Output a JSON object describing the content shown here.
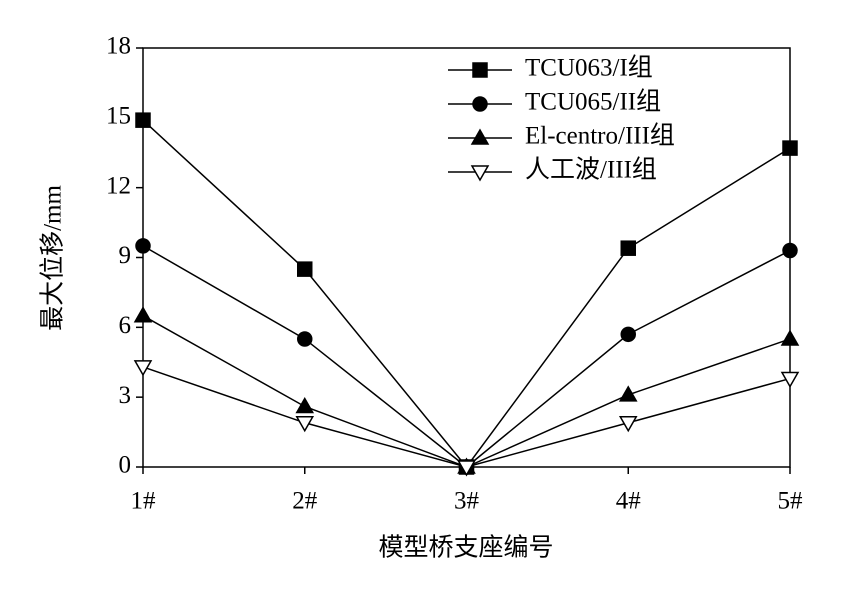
{
  "chart_data": {
    "type": "line",
    "x_label": "模型桥支座编号",
    "y_label": "最大位移/mm",
    "categories": [
      "1#",
      "2#",
      "3#",
      "4#",
      "5#"
    ],
    "series": [
      {
        "name": "TCU063/I组",
        "color": "#000000",
        "marker": "square",
        "values": [
          14.9,
          8.5,
          0,
          9.4,
          13.7
        ]
      },
      {
        "name": "TCU065/II组",
        "color": "#000000",
        "marker": "circle",
        "values": [
          9.5,
          5.5,
          0,
          5.7,
          9.3
        ]
      },
      {
        "name": "El-centro/III组",
        "color": "#000000",
        "marker": "triangle-up",
        "values": [
          6.5,
          2.6,
          0,
          3.1,
          5.5
        ]
      },
      {
        "name": "人工波/III组",
        "color": "#000000",
        "marker": "triangle-down-open",
        "values": [
          4.3,
          1.9,
          0,
          1.9,
          3.8
        ]
      }
    ],
    "ylim": [
      0,
      18
    ],
    "yticks": [
      0,
      3,
      6,
      9,
      12,
      15,
      18
    ],
    "legend": "upper-right",
    "grid": false
  }
}
